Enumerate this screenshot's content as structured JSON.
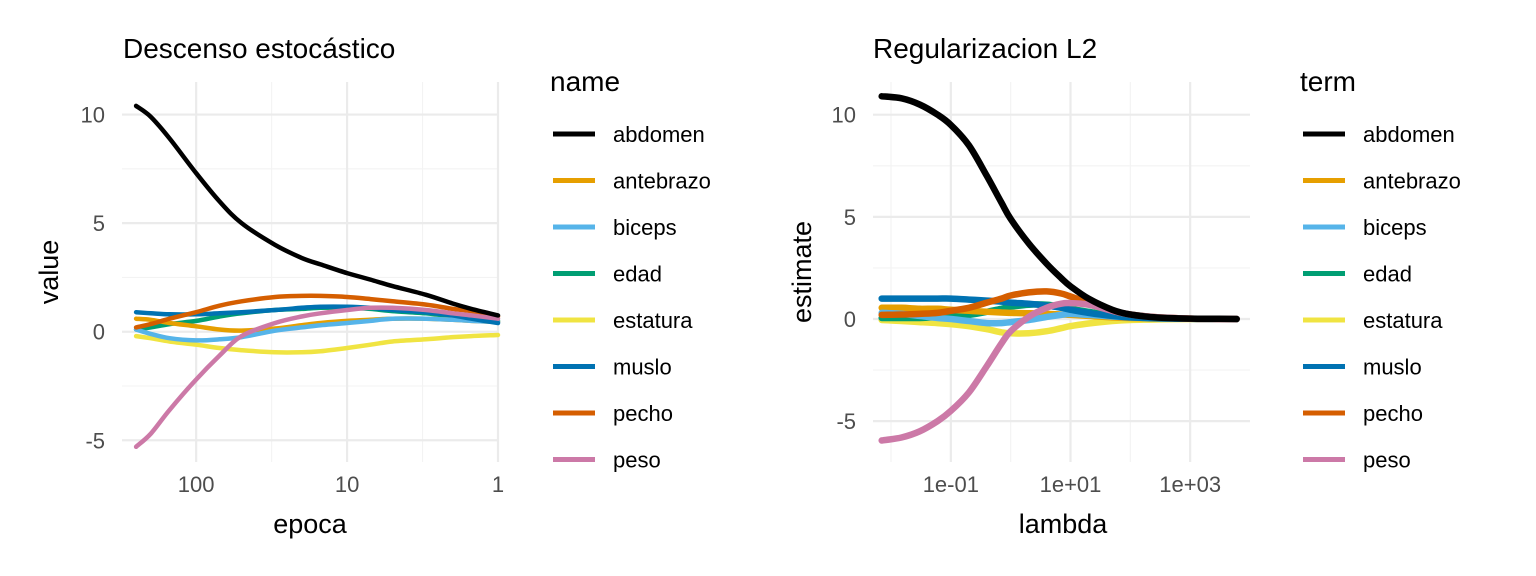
{
  "colors": {
    "abdomen": "#000000",
    "antebrazo": "#E69F00",
    "biceps": "#56B4E9",
    "edad": "#009E73",
    "estatura": "#F0E442",
    "muslo": "#0072B2",
    "pecho": "#D55E00",
    "peso": "#CC79A7"
  },
  "chart_data": [
    {
      "type": "line",
      "title": "Descenso estocástico",
      "xlabel": "epoca",
      "ylabel": "value",
      "x_scale": "log-reversed",
      "xlim": [
        310,
        1
      ],
      "ylim": [
        -6,
        11.5
      ],
      "x_ticks": [
        100,
        10,
        1
      ],
      "x_tick_labels": [
        "100",
        "10",
        "1"
      ],
      "y_ticks": [
        -5,
        0,
        5,
        10
      ],
      "y_tick_labels": [
        "-5",
        "0",
        "5",
        "10"
      ],
      "grid": true,
      "legend_title": "name",
      "legend_position": "right",
      "x": [
        250,
        200,
        150,
        100,
        70,
        50,
        30,
        20,
        15,
        10,
        7,
        5,
        3,
        2,
        1.5,
        1
      ],
      "series": [
        {
          "name": "abdomen",
          "values": [
            10.4,
            9.9,
            8.9,
            7.3,
            6.0,
            5.0,
            4.0,
            3.4,
            3.1,
            2.7,
            2.4,
            2.1,
            1.7,
            1.3,
            1.05,
            0.75
          ]
        },
        {
          "name": "antebrazo",
          "values": [
            0.6,
            0.55,
            0.4,
            0.25,
            0.1,
            0.05,
            0.15,
            0.3,
            0.4,
            0.5,
            0.55,
            0.6,
            0.6,
            0.55,
            0.5,
            0.45
          ]
        },
        {
          "name": "biceps",
          "values": [
            0.1,
            -0.1,
            -0.3,
            -0.4,
            -0.35,
            -0.25,
            0.05,
            0.2,
            0.3,
            0.4,
            0.5,
            0.6,
            0.6,
            0.55,
            0.5,
            0.45
          ]
        },
        {
          "name": "edad",
          "values": [
            0.1,
            0.2,
            0.35,
            0.5,
            0.7,
            0.85,
            1.0,
            1.05,
            1.1,
            1.1,
            1.05,
            0.95,
            0.85,
            0.7,
            0.6,
            0.5
          ]
        },
        {
          "name": "estatura",
          "values": [
            -0.2,
            -0.3,
            -0.45,
            -0.6,
            -0.75,
            -0.85,
            -0.95,
            -0.95,
            -0.9,
            -0.75,
            -0.6,
            -0.45,
            -0.35,
            -0.25,
            -0.2,
            -0.15
          ]
        },
        {
          "name": "muslo",
          "values": [
            0.9,
            0.85,
            0.8,
            0.8,
            0.85,
            0.9,
            1.0,
            1.1,
            1.15,
            1.15,
            1.1,
            1.0,
            0.9,
            0.75,
            0.6,
            0.4
          ]
        },
        {
          "name": "pecho",
          "values": [
            0.2,
            0.35,
            0.6,
            0.9,
            1.2,
            1.4,
            1.6,
            1.65,
            1.65,
            1.6,
            1.5,
            1.4,
            1.25,
            1.05,
            0.95,
            0.7
          ]
        },
        {
          "name": "peso",
          "values": [
            -5.3,
            -4.7,
            -3.6,
            -2.2,
            -1.1,
            -0.2,
            0.4,
            0.7,
            0.85,
            1.0,
            1.1,
            1.1,
            1.0,
            0.85,
            0.75,
            0.6
          ]
        }
      ]
    },
    {
      "type": "line",
      "title": "Regularizacion L2",
      "xlabel": "lambda",
      "ylabel": "estimate",
      "x_scale": "log",
      "xlim": [
        0.005,
        10000
      ],
      "ylim": [
        -7,
        11.6
      ],
      "x_ticks": [
        0.1,
        10,
        1000
      ],
      "x_tick_labels": [
        "1e-01",
        "1e+01",
        "1e+03"
      ],
      "y_ticks": [
        -5,
        0,
        5,
        10
      ],
      "y_tick_labels": [
        "-5",
        "0",
        "5",
        "10"
      ],
      "grid": true,
      "legend_title": "term",
      "legend_position": "right",
      "x": [
        0.007,
        0.015,
        0.03,
        0.06,
        0.1,
        0.2,
        0.4,
        0.7,
        1,
        2,
        4,
        7,
        10,
        20,
        50,
        100,
        300,
        1000,
        3000,
        6000
      ],
      "series": [
        {
          "name": "abdomen",
          "values": [
            10.9,
            10.8,
            10.5,
            10.0,
            9.5,
            8.5,
            7.0,
            5.7,
            4.9,
            3.7,
            2.7,
            2.0,
            1.6,
            1.0,
            0.45,
            0.22,
            0.07,
            0.02,
            0.01,
            0.0
          ]
        },
        {
          "name": "antebrazo",
          "values": [
            0.55,
            0.55,
            0.5,
            0.5,
            0.45,
            0.4,
            0.35,
            0.32,
            0.3,
            0.28,
            0.25,
            0.22,
            0.2,
            0.15,
            0.08,
            0.05,
            0.02,
            0.01,
            0.0,
            0.0
          ]
        },
        {
          "name": "biceps",
          "values": [
            0.3,
            0.25,
            0.15,
            0.05,
            0.0,
            -0.1,
            -0.2,
            -0.2,
            -0.15,
            -0.05,
            0.1,
            0.2,
            0.25,
            0.2,
            0.12,
            0.08,
            0.03,
            0.01,
            0.0,
            0.0
          ]
        },
        {
          "name": "edad",
          "values": [
            0.05,
            0.05,
            0.05,
            0.1,
            0.15,
            0.2,
            0.35,
            0.5,
            0.6,
            0.7,
            0.7,
            0.6,
            0.5,
            0.35,
            0.18,
            0.1,
            0.04,
            0.01,
            0.0,
            0.0
          ]
        },
        {
          "name": "estatura",
          "values": [
            -0.05,
            -0.1,
            -0.15,
            -0.2,
            -0.25,
            -0.35,
            -0.5,
            -0.65,
            -0.7,
            -0.7,
            -0.6,
            -0.45,
            -0.35,
            -0.22,
            -0.1,
            -0.05,
            -0.02,
            0.0,
            0.0,
            0.0
          ]
        },
        {
          "name": "muslo",
          "values": [
            1.0,
            1.0,
            1.0,
            1.0,
            1.0,
            0.95,
            0.9,
            0.85,
            0.8,
            0.75,
            0.65,
            0.55,
            0.45,
            0.3,
            0.15,
            0.08,
            0.03,
            0.01,
            0.0,
            0.0
          ]
        },
        {
          "name": "pecho",
          "values": [
            0.2,
            0.22,
            0.25,
            0.3,
            0.4,
            0.55,
            0.8,
            1.0,
            1.15,
            1.3,
            1.35,
            1.25,
            1.1,
            0.8,
            0.4,
            0.22,
            0.08,
            0.02,
            0.0,
            0.0
          ]
        },
        {
          "name": "peso",
          "values": [
            -5.95,
            -5.8,
            -5.5,
            -5.0,
            -4.5,
            -3.6,
            -2.3,
            -1.2,
            -0.6,
            0.1,
            0.55,
            0.75,
            0.78,
            0.7,
            0.4,
            0.22,
            0.08,
            0.02,
            0.0,
            0.0
          ]
        }
      ]
    }
  ]
}
